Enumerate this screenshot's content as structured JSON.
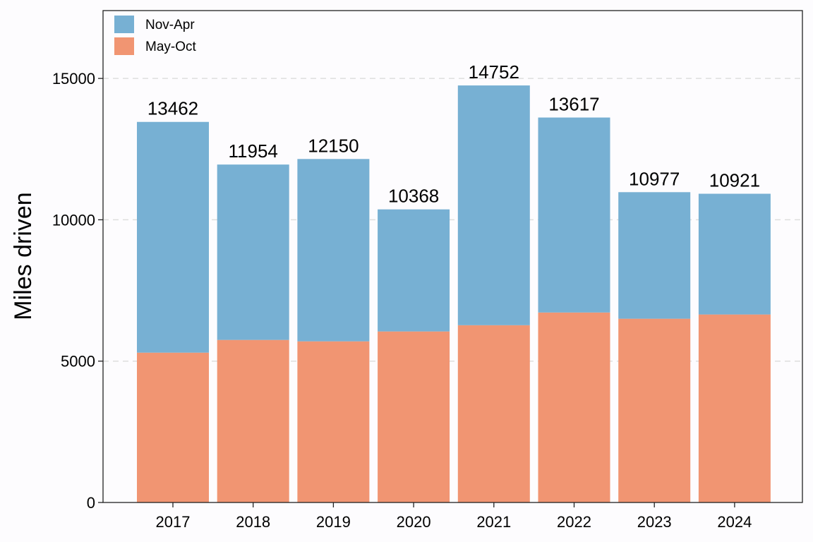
{
  "chart_data": {
    "type": "bar",
    "stacked": true,
    "title": "",
    "xlabel": "",
    "ylabel": "Miles driven",
    "ylim": [
      0,
      17400
    ],
    "yticks": [
      0,
      5000,
      10000,
      15000
    ],
    "categories": [
      "2017",
      "2018",
      "2019",
      "2020",
      "2021",
      "2022",
      "2023",
      "2024"
    ],
    "series": [
      {
        "name": "May-Oct",
        "color": "#f19572",
        "values": [
          5300,
          5750,
          5700,
          6050,
          6270,
          6720,
          6500,
          6650
        ]
      },
      {
        "name": "Nov-Apr",
        "color": "#77b0d3",
        "values": [
          8162,
          6204,
          6450,
          4318,
          8482,
          6897,
          4477,
          4271
        ]
      }
    ],
    "totals": [
      13462,
      11954,
      12150,
      10368,
      14752,
      13617,
      10977,
      10921
    ],
    "legend_order": [
      "Nov-Apr",
      "May-Oct"
    ],
    "legend_position": "top-left",
    "grid": "horizontal-dashed"
  }
}
